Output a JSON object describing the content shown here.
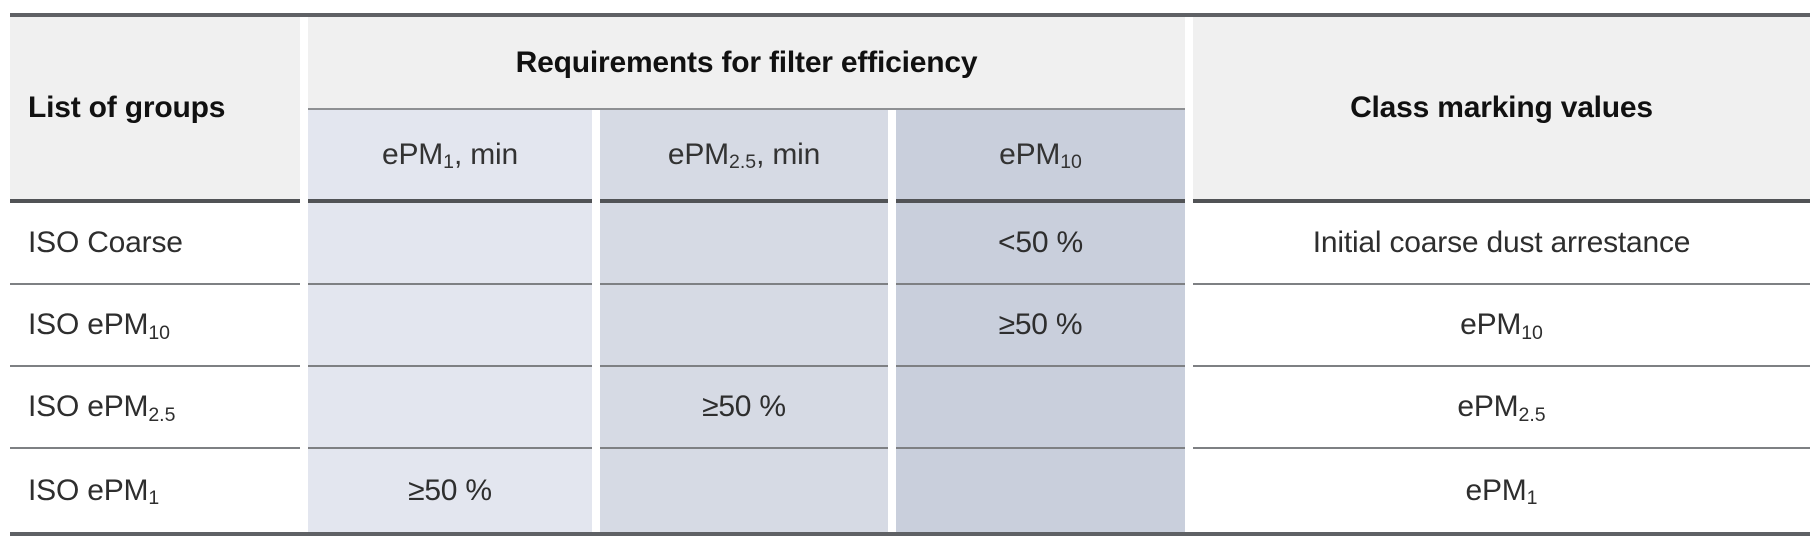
{
  "table": {
    "headers": {
      "list_of_groups": "List of groups",
      "requirements": "Requirements for filter efficiency",
      "class_marking": "Class marking values"
    },
    "subheaders": [
      {
        "id": "epm1-min",
        "segments": [
          {
            "t": "ePM"
          },
          {
            "t": "1",
            "sub": true
          },
          {
            "t": ", min"
          }
        ]
      },
      {
        "id": "epm25-min",
        "segments": [
          {
            "t": "ePM"
          },
          {
            "t": "2.5",
            "sub": true
          },
          {
            "t": ", min"
          }
        ]
      },
      {
        "id": "epm10",
        "segments": [
          {
            "t": "ePM"
          },
          {
            "t": "10",
            "sub": true
          }
        ]
      }
    ],
    "rows": [
      {
        "group": [
          {
            "t": "ISO Coarse"
          }
        ],
        "epm1": "",
        "epm25": "",
        "epm10": "<50 %",
        "class_marking": [
          {
            "t": "Initial coarse dust arrestance"
          }
        ]
      },
      {
        "group": [
          {
            "t": "ISO ePM"
          },
          {
            "t": "10",
            "sub": true
          }
        ],
        "epm1": "",
        "epm25": "",
        "epm10": "≥50 %",
        "class_marking": [
          {
            "t": "ePM"
          },
          {
            "t": "10",
            "sub": true
          }
        ]
      },
      {
        "group": [
          {
            "t": "ISO ePM"
          },
          {
            "t": "2.5",
            "sub": true
          }
        ],
        "epm1": "",
        "epm25": "≥50 %",
        "epm10": "",
        "class_marking": [
          {
            "t": "ePM"
          },
          {
            "t": "2.5",
            "sub": true
          }
        ]
      },
      {
        "group": [
          {
            "t": "ISO ePM"
          },
          {
            "t": "1",
            "sub": true
          }
        ],
        "epm1": "≥50 %",
        "epm25": "",
        "epm10": "",
        "class_marking": [
          {
            "t": "ePM"
          },
          {
            "t": "1",
            "sub": true
          }
        ]
      }
    ],
    "colors": {
      "header_bg": "#f0f0f0",
      "epm1_col_bg": "#e3e6ef",
      "epm25_col_bg": "#d6dae4",
      "epm10_col_bg": "#c9cfdc",
      "outer_rule": "#5f6165",
      "header_rule": "#515356",
      "row_rule": "#7e8083"
    }
  }
}
